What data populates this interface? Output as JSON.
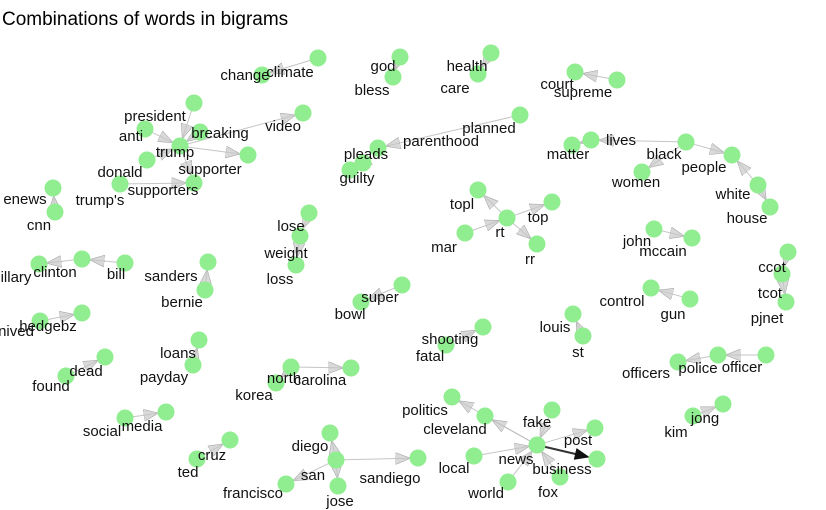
{
  "title": "Combinations of words in bigrams",
  "colors": {
    "node": "#90ee90",
    "edge": "#bbbbbb",
    "edge_strong": "#333333",
    "text": "#111111"
  },
  "graph": {
    "nodes": [
      "change",
      "climate",
      "god",
      "bless",
      "health",
      "care",
      "court",
      "supreme",
      "president",
      "anti",
      "trump",
      "breaking",
      "video",
      "donald",
      "supporter",
      "supporters",
      "trump's",
      "parenthood",
      "planned",
      "pleads",
      "guilty",
      "lives",
      "matter",
      "black",
      "people",
      "white",
      "house",
      "women",
      "topl",
      "rt",
      "top",
      "mar",
      "rr",
      "john",
      "mccain",
      "enews",
      "cnn",
      "illary",
      "clinton",
      "bill",
      "lose",
      "weight",
      "loss",
      "sanders",
      "bernie",
      "super",
      "bowl",
      "ccot",
      "tcot",
      "pjnet",
      "control",
      "gun",
      "louis",
      "st",
      "hedgebz",
      "nived",
      "loans",
      "payday",
      "dead",
      "found",
      "shooting",
      "fatal",
      "police",
      "officers",
      "officer",
      "north",
      "korea",
      "carolina",
      "politics",
      "cleveland",
      "fake",
      "news",
      "post",
      "business",
      "fox",
      "local",
      "world",
      "social",
      "media",
      "jong",
      "kim",
      "cruz",
      "ted",
      "diego",
      "san",
      "francisco",
      "jose",
      "sandiego"
    ],
    "edges": [
      [
        "climate",
        "change"
      ],
      [
        "god",
        "bless"
      ],
      [
        "health",
        "care"
      ],
      [
        "supreme",
        "court"
      ],
      [
        "president",
        "trump"
      ],
      [
        "anti",
        "trump"
      ],
      [
        "trump",
        "supporter"
      ],
      [
        "trump",
        "supporters"
      ],
      [
        "donald",
        "trump"
      ],
      [
        "breaking",
        "trump"
      ],
      [
        "trump",
        "video"
      ],
      [
        "trump's",
        "supporters"
      ],
      [
        "planned",
        "parenthood"
      ],
      [
        "pleads",
        "guilty"
      ],
      [
        "black",
        "lives"
      ],
      [
        "lives",
        "matter"
      ],
      [
        "black",
        "people"
      ],
      [
        "white",
        "people"
      ],
      [
        "white",
        "house"
      ],
      [
        "black",
        "women"
      ],
      [
        "rt",
        "topl"
      ],
      [
        "rt",
        "top"
      ],
      [
        "mar",
        "rt"
      ],
      [
        "rt",
        "rr"
      ],
      [
        "john",
        "mccain"
      ],
      [
        "cnn",
        "enews"
      ],
      [
        "clinton",
        "illary"
      ],
      [
        "bill",
        "clinton"
      ],
      [
        "lose",
        "weight"
      ],
      [
        "weight",
        "loss"
      ],
      [
        "bernie",
        "sanders"
      ],
      [
        "super",
        "bowl"
      ],
      [
        "ccot",
        "tcot"
      ],
      [
        "tcot",
        "pjnet"
      ],
      [
        "gun",
        "control"
      ],
      [
        "st",
        "louis"
      ],
      [
        "nived",
        "hedgebz"
      ],
      [
        "payday",
        "loans"
      ],
      [
        "found",
        "dead"
      ],
      [
        "fatal",
        "shooting"
      ],
      [
        "police",
        "officers"
      ],
      [
        "officer",
        "police"
      ],
      [
        "north",
        "korea"
      ],
      [
        "north",
        "carolina"
      ],
      [
        "news",
        "politics"
      ],
      [
        "news",
        "cleveland"
      ],
      [
        "fake",
        "news"
      ],
      [
        "news",
        "post"
      ],
      [
        "fox",
        "news"
      ],
      [
        "news",
        "business"
      ],
      [
        "local",
        "news"
      ],
      [
        "world",
        "news"
      ],
      [
        "social",
        "media"
      ],
      [
        "kim",
        "jong"
      ],
      [
        "ted",
        "cruz"
      ],
      [
        "san",
        "diego"
      ],
      [
        "san",
        "francisco"
      ],
      [
        "san",
        "jose"
      ],
      [
        "san",
        "sandiego"
      ]
    ]
  }
}
